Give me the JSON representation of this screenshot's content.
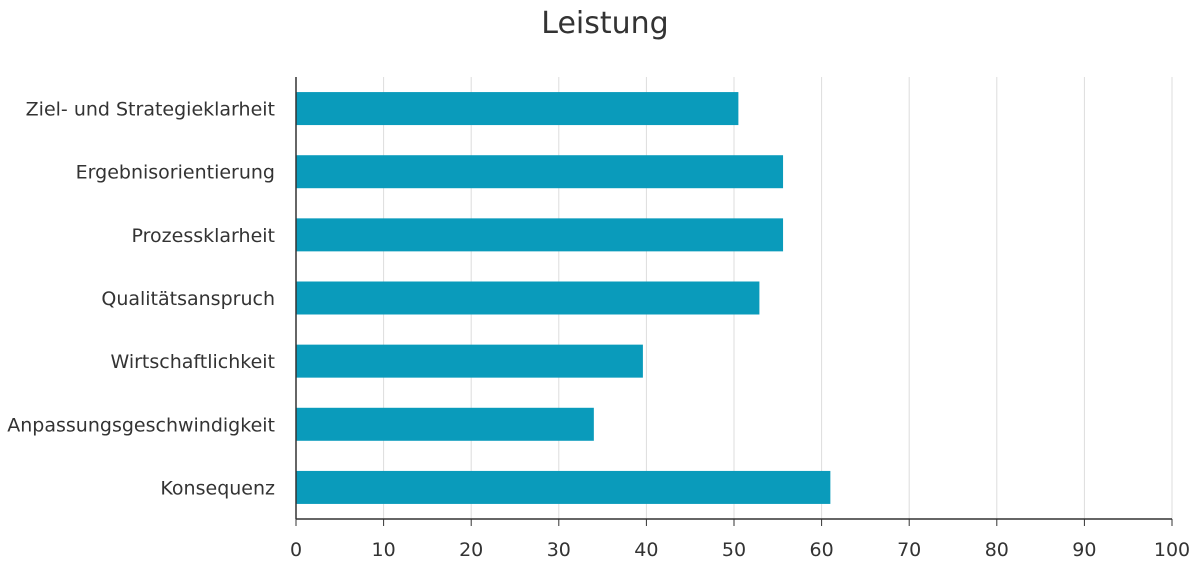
{
  "chart_data": {
    "type": "bar",
    "orientation": "horizontal",
    "title": "Leistung",
    "categories": [
      "Ziel- und Strategieklarheit",
      "Ergebnisorientierung",
      "Prozessklarheit",
      "Qualitätsanspruch",
      "Wirtschaftlichkeit",
      "Anpassungsgeschwindigkeit",
      "Konsequenz"
    ],
    "values": [
      50.5,
      55.6,
      55.6,
      52.9,
      39.6,
      34.0,
      61.0
    ],
    "xlim": [
      0,
      100
    ],
    "xticks": [
      "0",
      "10",
      "20",
      "30",
      "40",
      "50",
      "60",
      "70",
      "80",
      "90",
      "100"
    ],
    "grid": "vertical",
    "legend": "none",
    "bar_color": "#0a9bbb",
    "grid_color": "#dddddd",
    "axis_color": "#333333"
  }
}
